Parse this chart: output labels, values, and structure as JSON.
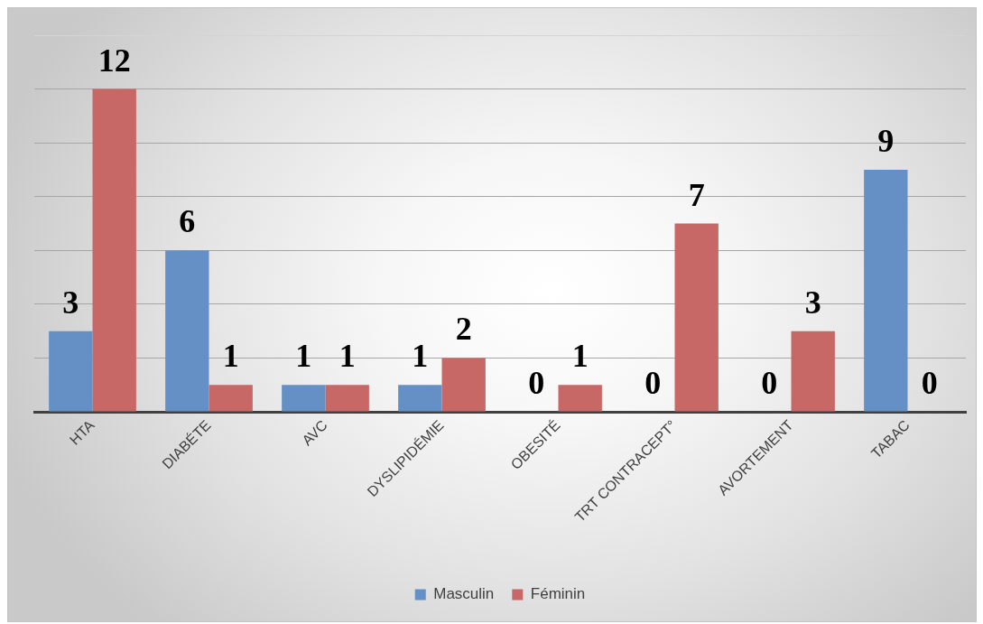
{
  "chart_data": {
    "type": "bar",
    "categories": [
      "HTA",
      "DIABÉTE",
      "AVC",
      "DYSLIPIDÉMIE",
      "OBESITÉ",
      "TRT CONTRACEPT°",
      "AVORTEMENT",
      "TABAC"
    ],
    "series": [
      {
        "name": "Masculin",
        "color": "#6590c5",
        "values": [
          3,
          6,
          1,
          1,
          0,
          0,
          0,
          9
        ]
      },
      {
        "name": "Féminin",
        "color": "#c76766",
        "values": [
          12,
          1,
          1,
          2,
          1,
          7,
          3,
          0
        ]
      }
    ],
    "ylim": [
      0,
      14
    ],
    "yticks": [
      {
        "value": 0,
        "label": null
      },
      {
        "value": 2,
        "label": null
      },
      {
        "value": 4,
        "label": null
      },
      {
        "value": 6,
        "label": null
      },
      {
        "value": 8,
        "label": null
      },
      {
        "value": 10,
        "label": null
      },
      {
        "value": 12,
        "label": null
      },
      {
        "value": 14,
        "label": null
      }
    ],
    "grid": "y",
    "legend": "bottom",
    "tick_labels": "x",
    "data_labels": true
  }
}
